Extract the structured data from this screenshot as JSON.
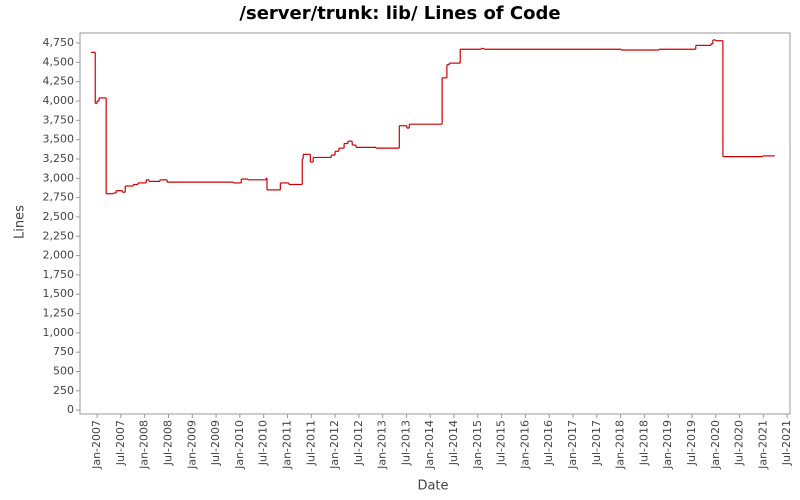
{
  "chart_data": {
    "type": "step",
    "title": "/server/trunk: lib/ Lines of Code",
    "x_label": "Date",
    "y_label": "Lines",
    "xlim": [
      2006.64,
      2021.56
    ],
    "ylim": [
      -50,
      4880
    ],
    "xticks": [
      {
        "value": 2007,
        "label": "Jan-2007"
      },
      {
        "value": 2007.5,
        "label": "Jul-2007"
      },
      {
        "value": 2008,
        "label": "Jan-2008"
      },
      {
        "value": 2008.5,
        "label": "Jul-2008"
      },
      {
        "value": 2009,
        "label": "Jan-2009"
      },
      {
        "value": 2009.5,
        "label": "Jul-2009"
      },
      {
        "value": 2010,
        "label": "Jan-2010"
      },
      {
        "value": 2010.5,
        "label": "Jul-2010"
      },
      {
        "value": 2011,
        "label": "Jan-2011"
      },
      {
        "value": 2011.5,
        "label": "Jul-2011"
      },
      {
        "value": 2012,
        "label": "Jan-2012"
      },
      {
        "value": 2012.5,
        "label": "Jul-2012"
      },
      {
        "value": 2013,
        "label": "Jan-2013"
      },
      {
        "value": 2013.5,
        "label": "Jul-2013"
      },
      {
        "value": 2014,
        "label": "Jan-2014"
      },
      {
        "value": 2014.5,
        "label": "Jul-2014"
      },
      {
        "value": 2015,
        "label": "Jan-2015"
      },
      {
        "value": 2015.5,
        "label": "Jul-2015"
      },
      {
        "value": 2016,
        "label": "Jan-2016"
      },
      {
        "value": 2016.5,
        "label": "Jul-2016"
      },
      {
        "value": 2017,
        "label": "Jan-2017"
      },
      {
        "value": 2017.5,
        "label": "Jul-2017"
      },
      {
        "value": 2018,
        "label": "Jan-2018"
      },
      {
        "value": 2018.5,
        "label": "Jul-2018"
      },
      {
        "value": 2019,
        "label": "Jan-2019"
      },
      {
        "value": 2019.5,
        "label": "Jul-2019"
      },
      {
        "value": 2020,
        "label": "Jan-2020"
      },
      {
        "value": 2020.5,
        "label": "Jul-2020"
      },
      {
        "value": 2021,
        "label": "Jan-2021"
      },
      {
        "value": 2021.5,
        "label": "Jul-2021"
      }
    ],
    "yticks": [
      0,
      {
        "value": 250,
        "label": "250"
      },
      {
        "value": 500,
        "label": "500"
      },
      {
        "value": 750,
        "label": "750"
      },
      {
        "value": 1000,
        "label": "1,000"
      },
      {
        "value": 1250,
        "label": "1,250"
      },
      {
        "value": 1500,
        "label": "1,500"
      },
      {
        "value": 1750,
        "label": "1,750"
      },
      {
        "value": 2000,
        "label": "2,000"
      },
      {
        "value": 2250,
        "label": "2,250"
      },
      {
        "value": 2500,
        "label": "2,500"
      },
      {
        "value": 2750,
        "label": "2,750"
      },
      {
        "value": 3000,
        "label": "3,000"
      },
      {
        "value": 3250,
        "label": "3,250"
      },
      {
        "value": 3500,
        "label": "3,500"
      },
      {
        "value": 3750,
        "label": "3,750"
      },
      {
        "value": 4000,
        "label": "4,000"
      },
      {
        "value": 4250,
        "label": "4,250"
      },
      {
        "value": 4500,
        "label": "4,500"
      },
      {
        "value": 4750,
        "label": "4,750"
      }
    ],
    "color": "#cc0000",
    "x": [
      2006.87,
      2006.96,
      2007.0,
      2007.04,
      2007.19,
      2007.34,
      2007.4,
      2007.53,
      2007.59,
      2007.76,
      2007.86,
      2008.03,
      2008.09,
      2008.32,
      2008.47,
      2009.86,
      2010.03,
      2010.17,
      2010.55,
      2010.57,
      2010.85,
      2011.03,
      2011.31,
      2011.33,
      2011.48,
      2011.54,
      2011.92,
      2012.0,
      2012.08,
      2012.19,
      2012.27,
      2012.36,
      2012.44,
      2012.86,
      2013.35,
      2013.51,
      2013.56,
      2014.25,
      2014.35,
      2014.4,
      2014.63,
      2015.07,
      2015.13,
      2018.01,
      2018.81,
      2019.58,
      2019.9,
      2019.94,
      2020.0,
      2020.15,
      2020.99,
      2021.24
    ],
    "values": [
      4630,
      3970,
      4000,
      4040,
      2800,
      2810,
      2840,
      2820,
      2900,
      2920,
      2940,
      2980,
      2960,
      2980,
      2950,
      2940,
      2990,
      2980,
      3000,
      2850,
      2940,
      2920,
      3250,
      3310,
      3210,
      3270,
      3300,
      3350,
      3390,
      3450,
      3480,
      3430,
      3400,
      3390,
      3680,
      3650,
      3700,
      4300,
      4470,
      4490,
      4670,
      4680,
      4670,
      4660,
      4670,
      4720,
      4740,
      4790,
      4780,
      3280,
      3290,
      3290
    ]
  }
}
